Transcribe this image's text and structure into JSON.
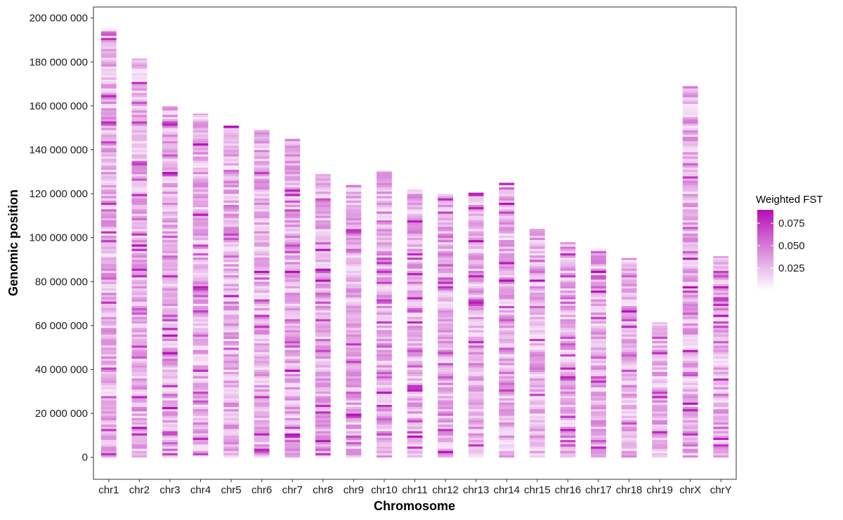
{
  "chart_data": {
    "type": "heatmap",
    "xlabel": "Chromosome",
    "ylabel": "Genomic position",
    "ylim": [
      -10000000,
      205000000
    ],
    "y_ticks": [
      0,
      20000000,
      40000000,
      60000000,
      80000000,
      100000000,
      120000000,
      140000000,
      160000000,
      180000000,
      200000000
    ],
    "y_tick_labels": [
      "0",
      "20 000 000",
      "40 000 000",
      "60 000 000",
      "80 000 000",
      "100 000 000",
      "120 000 000",
      "140 000 000",
      "160 000 000",
      "180 000 000",
      "200 000 000"
    ],
    "categories": [
      "chr1",
      "chr2",
      "chr3",
      "chr4",
      "chr5",
      "chr6",
      "chr7",
      "chr8",
      "chr9",
      "chr10",
      "chr11",
      "chr12",
      "chr13",
      "chr14",
      "chr15",
      "chr16",
      "chr17",
      "chr18",
      "chr19",
      "chrX",
      "chrY"
    ],
    "chromosome_lengths": [
      195000000,
      181500000,
      159800000,
      156500000,
      151000000,
      149000000,
      145000000,
      129000000,
      124000000,
      130500000,
      122000000,
      120000000,
      120500000,
      125000000,
      104000000,
      98000000,
      95000000,
      90700000,
      61400000,
      169000000,
      91500000
    ],
    "fill_scale": {
      "title": "Weighted FST",
      "low_color": "#ffffff",
      "high_color": "#b50fb5",
      "range": [
        0.0,
        0.09
      ],
      "breaks": [
        0.025,
        0.05,
        0.075
      ],
      "break_labels": [
        "0.025",
        "0.050",
        "0.075"
      ]
    },
    "grid": false,
    "legend_position": "right"
  }
}
